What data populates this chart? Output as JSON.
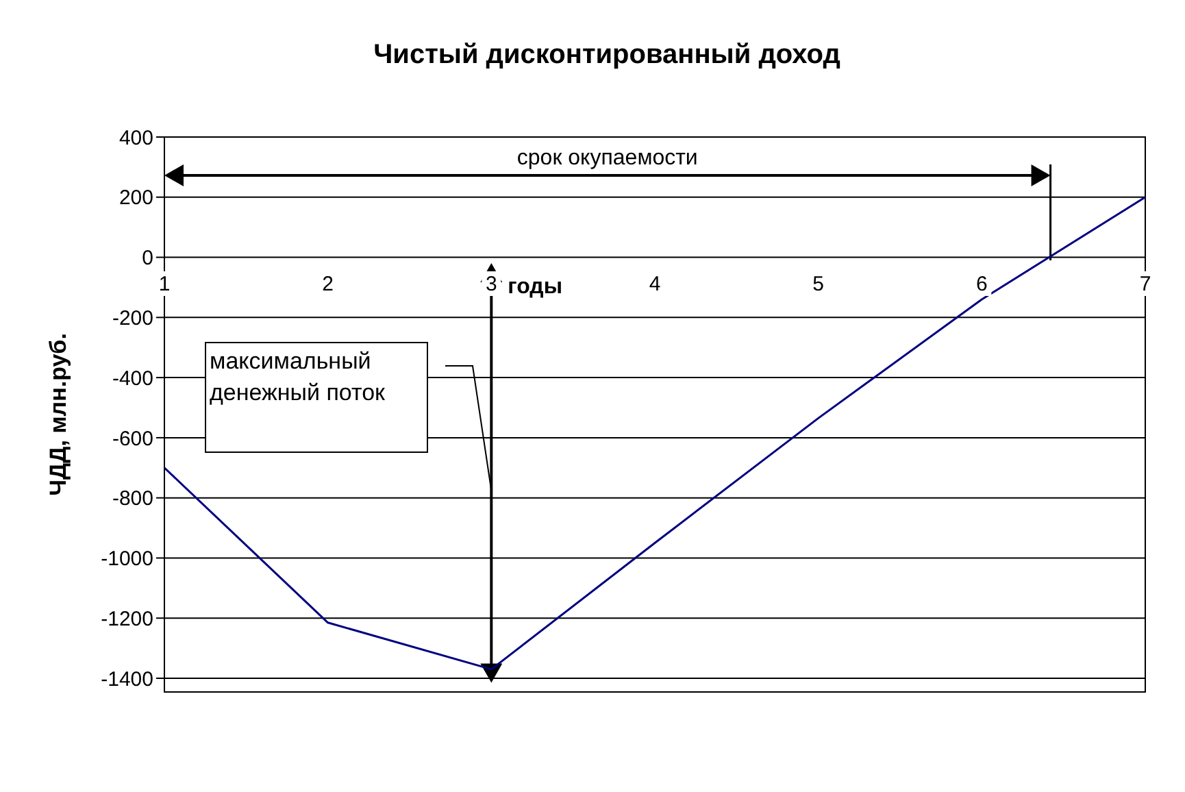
{
  "chart_data": {
    "type": "line",
    "title": "Чистый дисконтированный доход",
    "xlabel": "годы",
    "ylabel": "ЧДД, млн.руб.",
    "x": [
      1,
      2,
      3,
      4,
      5,
      6,
      7
    ],
    "series": [
      {
        "color": "#000080",
        "values": [
          -700,
          -1215,
          -1370,
          -950,
          -535,
          -140,
          200
        ]
      }
    ],
    "xlim": [
      1,
      7
    ],
    "xticks": [
      1,
      2,
      3,
      4,
      5,
      6,
      7
    ],
    "ylim": [
      -1400,
      400
    ],
    "yticks": [
      400,
      200,
      0,
      -200,
      -400,
      -600,
      -800,
      -1000,
      -1200,
      -1400
    ],
    "grid": "y",
    "legend": false,
    "marker": "none",
    "line_style": "solid",
    "ref_lines": [
      {
        "axis": "x",
        "value": 6.42
      }
    ],
    "annotations": [
      "срок окупаемости",
      "максимальный денежный поток"
    ]
  }
}
